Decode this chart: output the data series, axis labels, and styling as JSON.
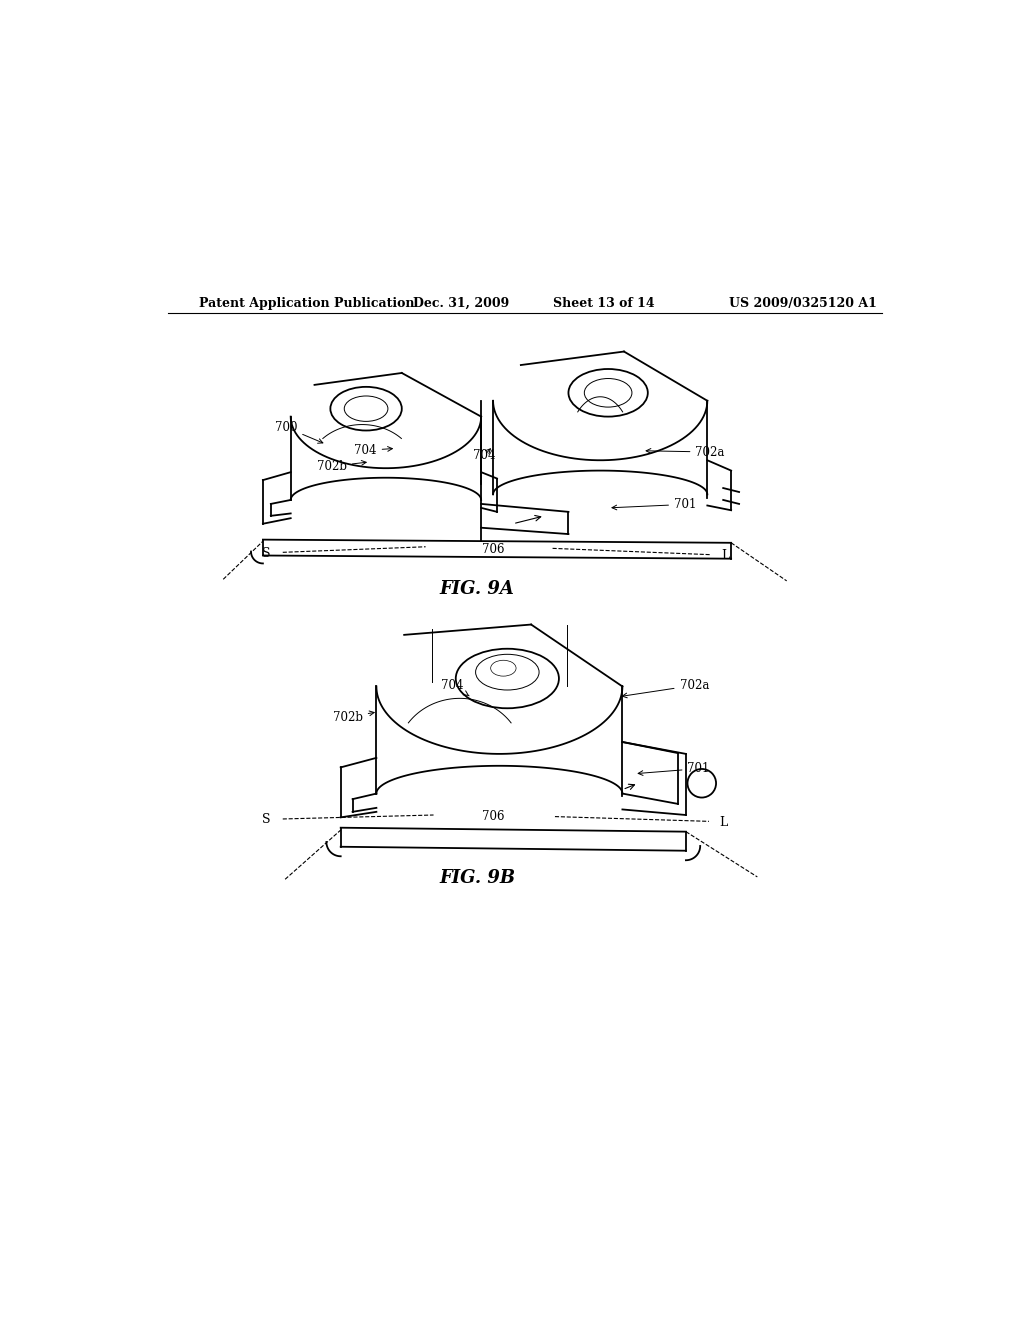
{
  "background_color": "#ffffff",
  "header_text": "Patent Application Publication",
  "header_date": "Dec. 31, 2009",
  "header_sheet": "Sheet 13 of 14",
  "header_patent": "US 2009/0325120 A1",
  "fig9a_caption": "FIG. 9A",
  "fig9b_caption": "FIG. 9B",
  "line_color": "#000000"
}
